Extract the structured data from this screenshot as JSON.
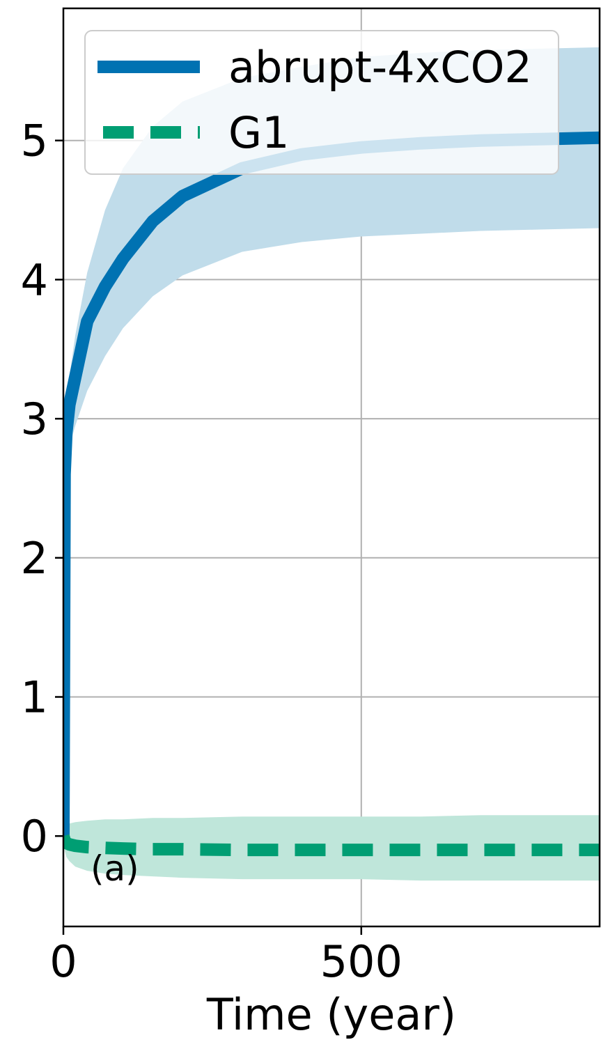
{
  "chart_data": {
    "type": "line",
    "xlabel": "Time (year)",
    "ylabel": "",
    "panel_label": "(a)",
    "xlim": [
      0,
      900
    ],
    "ylim": [
      -0.65,
      5.95
    ],
    "x_ticks": [
      0,
      500
    ],
    "x_tick_labels": [
      "0",
      "500"
    ],
    "y_ticks": [
      0,
      1,
      2,
      3,
      4,
      5
    ],
    "y_tick_labels": [
      "0",
      "1",
      "2",
      "3",
      "4",
      "5"
    ],
    "grid": true,
    "legend_position": "top-left",
    "legend": [
      "abrupt-4xCO2",
      "G1"
    ],
    "series": [
      {
        "name": "abrupt-4xCO2",
        "color": "#0072b2",
        "line_style": "solid",
        "band_color": "#c0dcea",
        "x": [
          0,
          2,
          5,
          10,
          20,
          40,
          70,
          100,
          150,
          200,
          300,
          400,
          500,
          600,
          700,
          800,
          900
        ],
        "y": [
          0,
          2.6,
          2.9,
          3.1,
          3.3,
          3.7,
          3.95,
          4.15,
          4.42,
          4.6,
          4.8,
          4.9,
          4.95,
          4.98,
          5.0,
          5.01,
          5.02
        ],
        "band_upper": [
          0,
          2.7,
          3.0,
          3.3,
          3.6,
          4.05,
          4.5,
          4.8,
          5.1,
          5.28,
          5.45,
          5.53,
          5.6,
          5.63,
          5.65,
          5.66,
          5.67
        ],
        "band_lower": [
          0,
          2.5,
          2.7,
          2.8,
          2.95,
          3.2,
          3.45,
          3.65,
          3.88,
          4.03,
          4.2,
          4.27,
          4.31,
          4.33,
          4.35,
          4.36,
          4.37
        ]
      },
      {
        "name": "G1",
        "color": "#009e73",
        "line_style": "dashed",
        "band_color": "#bfe6da",
        "x": [
          0,
          2,
          5,
          10,
          20,
          40,
          70,
          100,
          150,
          200,
          300,
          400,
          500,
          600,
          700,
          800,
          900
        ],
        "y": [
          0,
          -0.03,
          -0.05,
          -0.06,
          -0.07,
          -0.08,
          -0.085,
          -0.09,
          -0.095,
          -0.095,
          -0.1,
          -0.1,
          -0.1,
          -0.1,
          -0.1,
          -0.1,
          -0.1
        ],
        "band_upper": [
          0,
          0.05,
          0.07,
          0.09,
          0.1,
          0.11,
          0.12,
          0.12,
          0.13,
          0.13,
          0.14,
          0.14,
          0.14,
          0.14,
          0.15,
          0.15,
          0.15
        ],
        "band_lower": [
          0,
          -0.1,
          -0.15,
          -0.18,
          -0.22,
          -0.25,
          -0.27,
          -0.28,
          -0.29,
          -0.3,
          -0.31,
          -0.31,
          -0.31,
          -0.32,
          -0.32,
          -0.32,
          -0.32
        ]
      }
    ]
  }
}
